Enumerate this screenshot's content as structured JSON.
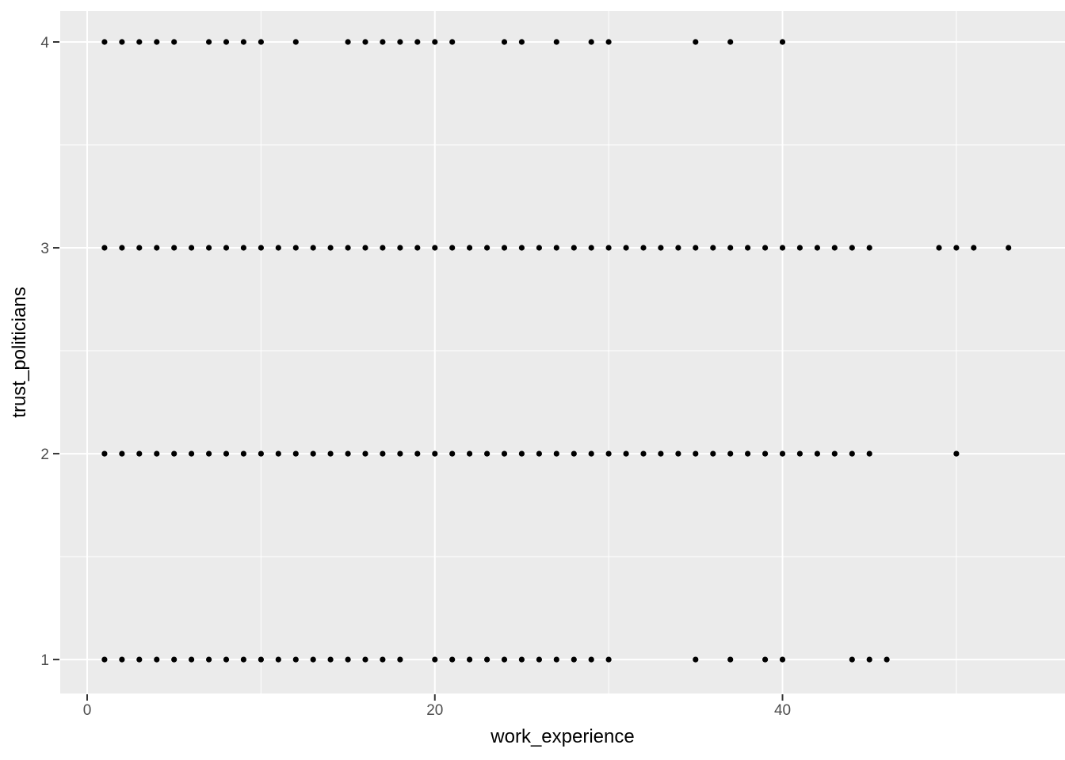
{
  "chart_data": {
    "type": "scatter",
    "title": "",
    "xlabel": "work_experience",
    "ylabel": "trust_politicians",
    "xlim": [
      -1.55,
      56.25
    ],
    "ylim": [
      0.835,
      4.15
    ],
    "grid": "on",
    "legend": "none",
    "panel_bg": "#ebebeb",
    "grid_color": "#ffffff",
    "point_color": "#000000",
    "tick_mark_color": "#333333",
    "tick_label_color": "#4d4d4d",
    "x_ticks": [
      {
        "value": 0,
        "label": "0"
      },
      {
        "value": 20,
        "label": "20"
      },
      {
        "value": 40,
        "label": "40"
      }
    ],
    "y_ticks": [
      {
        "value": 4,
        "label": "4"
      },
      {
        "value": 3,
        "label": "3"
      },
      {
        "value": 2,
        "label": "2"
      },
      {
        "value": 1,
        "label": "1"
      }
    ],
    "x_minor": [
      10,
      30,
      50
    ],
    "y_minor": [
      1.5,
      2.5,
      3.5
    ],
    "series": [
      {
        "name": "trust_politicians = 4",
        "y": 4,
        "x": [
          1,
          2,
          3,
          4,
          5,
          7,
          8,
          9,
          10,
          12,
          15,
          16,
          17,
          18,
          19,
          20,
          21,
          24,
          25,
          27,
          29,
          30,
          35,
          37,
          40
        ]
      },
      {
        "name": "trust_politicians = 3",
        "y": 3,
        "x": [
          1,
          2,
          3,
          4,
          5,
          6,
          7,
          8,
          9,
          10,
          11,
          12,
          13,
          14,
          15,
          16,
          17,
          18,
          19,
          20,
          21,
          22,
          23,
          24,
          25,
          26,
          27,
          28,
          29,
          30,
          31,
          32,
          33,
          34,
          35,
          36,
          37,
          38,
          39,
          40,
          41,
          42,
          43,
          44,
          45,
          49,
          50,
          51,
          53
        ]
      },
      {
        "name": "trust_politicians = 2",
        "y": 2,
        "x": [
          1,
          2,
          3,
          4,
          5,
          6,
          7,
          8,
          9,
          10,
          11,
          12,
          13,
          14,
          15,
          16,
          17,
          18,
          19,
          20,
          21,
          22,
          23,
          24,
          25,
          26,
          27,
          28,
          29,
          30,
          31,
          32,
          33,
          34,
          35,
          36,
          37,
          38,
          39,
          40,
          41,
          42,
          43,
          44,
          45,
          50
        ]
      },
      {
        "name": "trust_politicians = 1",
        "y": 1,
        "x": [
          1,
          2,
          3,
          4,
          5,
          6,
          7,
          8,
          9,
          10,
          11,
          12,
          13,
          14,
          15,
          16,
          17,
          18,
          20,
          21,
          22,
          23,
          24,
          25,
          26,
          27,
          28,
          29,
          30,
          35,
          37,
          39,
          40,
          44,
          45,
          46
        ]
      }
    ]
  }
}
